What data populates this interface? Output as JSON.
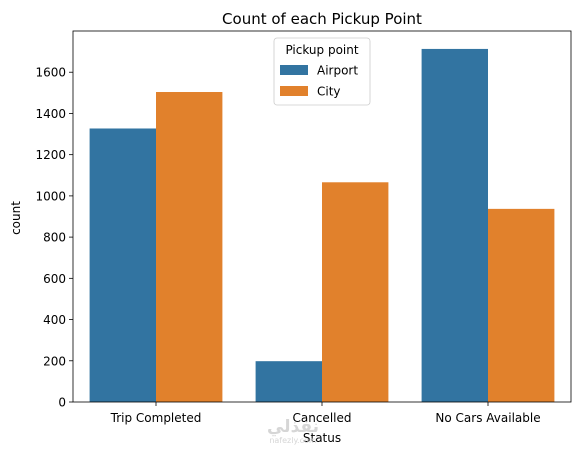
{
  "chart_data": {
    "type": "bar",
    "title": "Count of each Pickup Point",
    "xlabel": "Status",
    "ylabel": "count",
    "categories": [
      "Trip Completed",
      "Cancelled",
      "No Cars Available"
    ],
    "series": [
      {
        "name": "Airport",
        "color": "#3274a1",
        "values": [
          1327,
          198,
          1713
        ]
      },
      {
        "name": "City",
        "color": "#e1812c",
        "values": [
          1504,
          1066,
          937
        ]
      }
    ],
    "ylim": [
      0,
      1800
    ],
    "yticks": [
      0,
      200,
      400,
      600,
      800,
      1000,
      1200,
      1400,
      1600
    ],
    "grid": false,
    "legend": {
      "title": "Pickup point",
      "placement": "top-center"
    }
  },
  "watermark": {
    "arabic": "نفذلي",
    "latin": "nafezly.com"
  }
}
